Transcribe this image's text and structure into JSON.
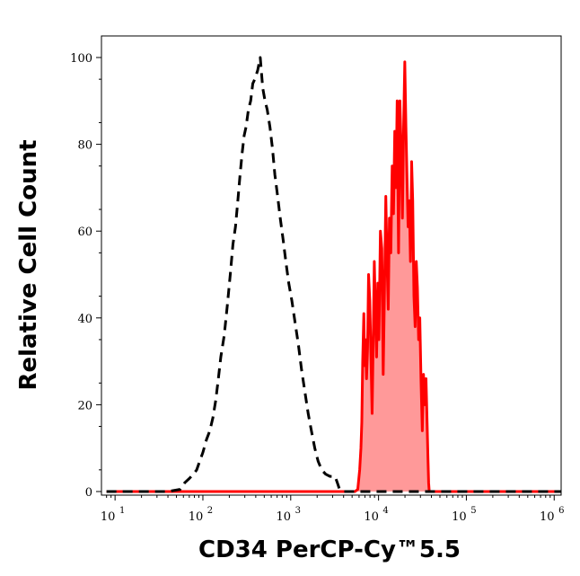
{
  "chart_data": {
    "type": "area",
    "xlabel": "CD34 PerCP-Cy™5.5",
    "ylabel": "Relative Cell Count",
    "xscale": "log",
    "xlim": [
      7,
      1200000
    ],
    "ylim": [
      0,
      100
    ],
    "grid": false,
    "legend": "none",
    "x_ticks": [
      {
        "base": "10",
        "exp": "1",
        "value": 10
      },
      {
        "base": "10",
        "exp": "2",
        "value": 100
      },
      {
        "base": "10",
        "exp": "3",
        "value": 1000
      },
      {
        "base": "10",
        "exp": "4",
        "value": 10000
      },
      {
        "base": "10",
        "exp": "5",
        "value": 100000
      },
      {
        "base": "10",
        "exp": "6",
        "value": 1000000
      }
    ],
    "y_ticks": [
      "0",
      "20",
      "40",
      "60",
      "80",
      "100"
    ],
    "series": [
      {
        "style": "dashed",
        "color": "#000000",
        "fill": "none",
        "points": [
          [
            8,
            0
          ],
          [
            20,
            0
          ],
          [
            40,
            0
          ],
          [
            55,
            0.5
          ],
          [
            62,
            2
          ],
          [
            70,
            3
          ],
          [
            78,
            4
          ],
          [
            85,
            5
          ],
          [
            92,
            7
          ],
          [
            100,
            9
          ],
          [
            110,
            12
          ],
          [
            120,
            14
          ],
          [
            130,
            17
          ],
          [
            140,
            21
          ],
          [
            150,
            26
          ],
          [
            160,
            31
          ],
          [
            175,
            36
          ],
          [
            190,
            43
          ],
          [
            205,
            50
          ],
          [
            220,
            57
          ],
          [
            235,
            61
          ],
          [
            250,
            67
          ],
          [
            265,
            73
          ],
          [
            280,
            78
          ],
          [
            295,
            82
          ],
          [
            310,
            84
          ],
          [
            330,
            88
          ],
          [
            350,
            90
          ],
          [
            370,
            94
          ],
          [
            390,
            95
          ],
          [
            420,
            97
          ],
          [
            450,
            100
          ],
          [
            480,
            93
          ],
          [
            510,
            90
          ],
          [
            540,
            88
          ],
          [
            580,
            84
          ],
          [
            620,
            79
          ],
          [
            660,
            73
          ],
          [
            710,
            68
          ],
          [
            760,
            63
          ],
          [
            820,
            58
          ],
          [
            880,
            53
          ],
          [
            950,
            48
          ],
          [
            1030,
            44
          ],
          [
            1120,
            39
          ],
          [
            1220,
            34
          ],
          [
            1330,
            28
          ],
          [
            1450,
            23
          ],
          [
            1580,
            18
          ],
          [
            1720,
            14
          ],
          [
            1880,
            10
          ],
          [
            2050,
            7
          ],
          [
            2250,
            5
          ],
          [
            2500,
            4
          ],
          [
            2800,
            3.5
          ],
          [
            3200,
            3.5
          ],
          [
            3400,
            2
          ],
          [
            3600,
            0.5
          ],
          [
            4000,
            0
          ],
          [
            20000,
            0
          ],
          [
            100000,
            0
          ],
          [
            1200000,
            0
          ]
        ]
      },
      {
        "style": "solid",
        "color": "#ff0000",
        "fill": "#ff9999",
        "points": [
          [
            8,
            0
          ],
          [
            1000,
            0
          ],
          [
            5400,
            0
          ],
          [
            5800,
            0.5
          ],
          [
            6100,
            5
          ],
          [
            6300,
            10
          ],
          [
            6450,
            16
          ],
          [
            6600,
            30
          ],
          [
            6800,
            41
          ],
          [
            6950,
            29
          ],
          [
            7100,
            35
          ],
          [
            7300,
            26
          ],
          [
            7500,
            33
          ],
          [
            7700,
            50
          ],
          [
            7950,
            44
          ],
          [
            8200,
            31
          ],
          [
            8450,
            18
          ],
          [
            8700,
            35
          ],
          [
            8950,
            53
          ],
          [
            9200,
            42
          ],
          [
            9500,
            31
          ],
          [
            9800,
            48
          ],
          [
            10100,
            35
          ],
          [
            10500,
            60
          ],
          [
            10900,
            56
          ],
          [
            11300,
            27
          ],
          [
            11700,
            47
          ],
          [
            12100,
            68
          ],
          [
            12500,
            53
          ],
          [
            12900,
            42
          ],
          [
            13300,
            63
          ],
          [
            13800,
            55
          ],
          [
            14300,
            75
          ],
          [
            14800,
            64
          ],
          [
            15300,
            83
          ],
          [
            15800,
            70
          ],
          [
            16300,
            90
          ],
          [
            16900,
            55
          ],
          [
            17500,
            90
          ],
          [
            18100,
            79
          ],
          [
            18700,
            63
          ],
          [
            19300,
            84
          ],
          [
            19900,
            99
          ],
          [
            20500,
            84
          ],
          [
            21100,
            72
          ],
          [
            21700,
            61
          ],
          [
            22400,
            67
          ],
          [
            23100,
            53
          ],
          [
            23800,
            76
          ],
          [
            24500,
            67
          ],
          [
            25300,
            45
          ],
          [
            26100,
            38
          ],
          [
            26900,
            53
          ],
          [
            27700,
            47
          ],
          [
            28600,
            35
          ],
          [
            29500,
            40
          ],
          [
            30500,
            25
          ],
          [
            31500,
            14
          ],
          [
            32500,
            27
          ],
          [
            33500,
            20
          ],
          [
            34700,
            26
          ],
          [
            35700,
            16
          ],
          [
            36500,
            8
          ],
          [
            37200,
            2
          ],
          [
            37800,
            0
          ],
          [
            60000,
            0
          ],
          [
            200000,
            0
          ],
          [
            1200000,
            0
          ]
        ]
      }
    ]
  }
}
